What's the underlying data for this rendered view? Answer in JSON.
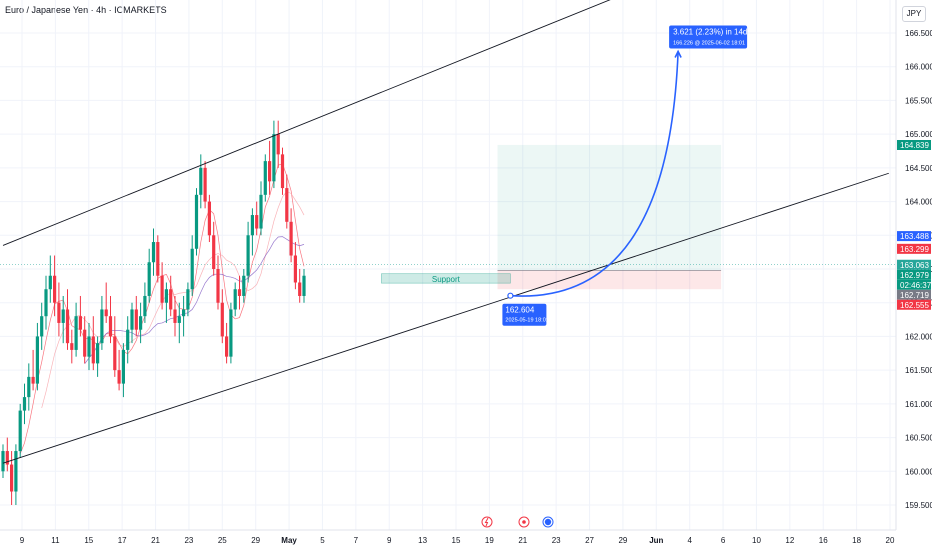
{
  "header": {
    "title": "Euro / Japanese Yen · 4h · ICMARKETS",
    "currency": "JPY"
  },
  "chart_data": {
    "type": "candlestick",
    "symbol": "EURJPY",
    "timeframe": "4h",
    "exchange": "ICMARKETS",
    "ylim": [
      159.3,
      167.1
    ],
    "y_ticks": [
      "166.500",
      "166.000",
      "165.500",
      "165.000",
      "164.500",
      "164.000",
      "163.500",
      "163.000",
      "162.500",
      "162.000",
      "161.500",
      "161.000",
      "160.500",
      "160.000",
      "159.500"
    ],
    "x_ticks": [
      "9",
      "11",
      "15",
      "17",
      "21",
      "23",
      "25",
      "29",
      "May",
      "5",
      "7",
      "9",
      "13",
      "15",
      "19",
      "21",
      "23",
      "27",
      "29",
      "Jun",
      "4",
      "6",
      "10",
      "12",
      "16",
      "18",
      "20"
    ],
    "candles": [
      [
        160.0,
        160.4,
        159.9,
        160.3
      ],
      [
        160.3,
        160.5,
        160.0,
        160.1
      ],
      [
        160.1,
        160.3,
        159.5,
        159.7
      ],
      [
        159.7,
        160.4,
        159.5,
        160.3
      ],
      [
        160.3,
        161.0,
        160.2,
        160.9
      ],
      [
        160.9,
        161.3,
        160.7,
        161.1
      ],
      [
        161.1,
        161.6,
        160.9,
        161.4
      ],
      [
        161.4,
        161.8,
        161.2,
        161.3
      ],
      [
        161.3,
        162.2,
        161.2,
        162.0
      ],
      [
        162.0,
        162.5,
        161.8,
        162.3
      ],
      [
        162.3,
        162.9,
        162.1,
        162.7
      ],
      [
        162.7,
        163.2,
        162.5,
        162.9
      ],
      [
        162.9,
        163.2,
        162.3,
        162.5
      ],
      [
        162.5,
        162.8,
        162.0,
        162.2
      ],
      [
        162.2,
        162.6,
        161.9,
        162.4
      ],
      [
        162.4,
        162.7,
        161.8,
        161.9
      ],
      [
        161.9,
        162.1,
        161.6,
        161.8
      ],
      [
        161.8,
        162.5,
        161.7,
        162.3
      ],
      [
        162.3,
        162.6,
        162.0,
        162.1
      ],
      [
        162.1,
        162.3,
        161.6,
        161.7
      ],
      [
        161.7,
        162.2,
        161.5,
        162.0
      ],
      [
        162.0,
        162.3,
        161.5,
        161.6
      ],
      [
        161.6,
        162.0,
        161.4,
        161.9
      ],
      [
        161.9,
        162.6,
        161.8,
        162.4
      ],
      [
        162.4,
        162.8,
        162.2,
        162.3
      ],
      [
        162.3,
        162.6,
        161.9,
        162.0
      ],
      [
        162.0,
        162.3,
        161.4,
        161.5
      ],
      [
        161.5,
        161.8,
        161.2,
        161.3
      ],
      [
        161.3,
        161.9,
        161.1,
        161.8
      ],
      [
        161.8,
        162.3,
        161.6,
        162.1
      ],
      [
        162.1,
        162.5,
        161.9,
        162.4
      ],
      [
        162.4,
        162.6,
        162.0,
        162.1
      ],
      [
        162.1,
        162.5,
        161.9,
        162.3
      ],
      [
        162.3,
        162.8,
        162.2,
        162.6
      ],
      [
        162.6,
        163.3,
        162.5,
        163.1
      ],
      [
        163.1,
        163.6,
        162.9,
        163.4
      ],
      [
        163.4,
        163.5,
        162.8,
        162.9
      ],
      [
        162.9,
        163.1,
        162.4,
        162.5
      ],
      [
        162.5,
        162.8,
        162.2,
        162.7
      ],
      [
        162.7,
        162.9,
        162.3,
        162.4
      ],
      [
        162.4,
        162.6,
        162.0,
        162.2
      ],
      [
        162.2,
        162.5,
        161.9,
        162.3
      ],
      [
        162.3,
        162.6,
        162.0,
        162.4
      ],
      [
        162.4,
        162.8,
        162.3,
        162.7
      ],
      [
        162.7,
        163.5,
        162.6,
        163.3
      ],
      [
        163.3,
        164.2,
        163.2,
        164.1
      ],
      [
        164.1,
        164.7,
        163.9,
        164.5
      ],
      [
        164.5,
        164.6,
        163.9,
        164.0
      ],
      [
        164.0,
        164.1,
        163.4,
        163.5
      ],
      [
        163.5,
        163.7,
        162.9,
        163.0
      ],
      [
        163.0,
        163.2,
        162.4,
        162.5
      ],
      [
        162.5,
        162.7,
        161.9,
        162.0
      ],
      [
        162.0,
        162.2,
        161.6,
        161.7
      ],
      [
        161.7,
        162.5,
        161.6,
        162.4
      ],
      [
        162.4,
        162.8,
        162.3,
        162.7
      ],
      [
        162.7,
        162.9,
        162.4,
        162.6
      ],
      [
        162.6,
        163.0,
        162.5,
        162.9
      ],
      [
        162.9,
        163.7,
        162.8,
        163.5
      ],
      [
        163.5,
        163.9,
        163.2,
        163.8
      ],
      [
        163.8,
        164.0,
        163.5,
        163.6
      ],
      [
        163.6,
        164.3,
        163.5,
        164.1
      ],
      [
        164.1,
        164.7,
        164.0,
        164.6
      ],
      [
        164.6,
        164.9,
        164.1,
        164.3
      ],
      [
        164.3,
        165.2,
        164.2,
        165.0
      ],
      [
        165.0,
        165.2,
        164.5,
        164.7
      ],
      [
        164.7,
        164.8,
        164.1,
        164.2
      ],
      [
        164.2,
        164.4,
        163.6,
        163.7
      ],
      [
        163.7,
        163.9,
        163.1,
        163.2
      ],
      [
        163.2,
        163.4,
        162.7,
        162.8
      ],
      [
        162.8,
        163.0,
        162.5,
        162.6
      ],
      [
        162.6,
        163.0,
        162.5,
        162.9
      ]
    ],
    "trendlines": [
      {
        "name": "channel-upper",
        "from": [
          0,
          163.35
        ],
        "to": [
          186,
          168.15
        ]
      },
      {
        "name": "channel-lower",
        "from": [
          0,
          160.12
        ],
        "to": [
          206,
          164.42
        ]
      }
    ],
    "support_zone": {
      "label": "Support",
      "x_from": 88,
      "x_to": 118,
      "y_from": 162.82,
      "y_to": 162.93
    },
    "target_zone": {
      "x_from": 115,
      "x_to": 167,
      "y_from": 162.98,
      "y_to": 164.84
    },
    "stop_zone": {
      "x_from": 115,
      "x_to": 167,
      "y_from": 162.7,
      "y_to": 162.98
    },
    "projection": {
      "from": [
        118,
        162.604
      ],
      "to": [
        157,
        166.226
      ],
      "start_label": "162.604",
      "start_date": "2025-05-19 18:01",
      "change_label": "3.621 (2.23%) in 14d",
      "end_label": "166.226 @ 2025-06-02  18:01"
    },
    "price_labels": [
      {
        "text": "164.839",
        "y": 164.839,
        "color": "#089981"
      },
      {
        "text": "163.488",
        "y": 163.488,
        "color": "#2962ff"
      },
      {
        "text": "163.299",
        "y": 163.299,
        "color": "#f23645"
      },
      {
        "text": "163.063",
        "y": 163.063,
        "color": "#26a69a"
      },
      {
        "text": "162.979",
        "y": 162.979,
        "color": "#089981"
      },
      {
        "text": "02:46:37",
        "y": 162.86,
        "color": "#089981"
      },
      {
        "text": "162.719",
        "y": 162.719,
        "color": "#787b86"
      },
      {
        "text": "162.555",
        "y": 162.555,
        "color": "#f23645"
      }
    ],
    "event_icons": [
      "lightning-icon",
      "target-icon",
      "circle-icon"
    ],
    "colors": {
      "up": "#089981",
      "down": "#f23645",
      "grid": "#f0f3fa"
    }
  }
}
